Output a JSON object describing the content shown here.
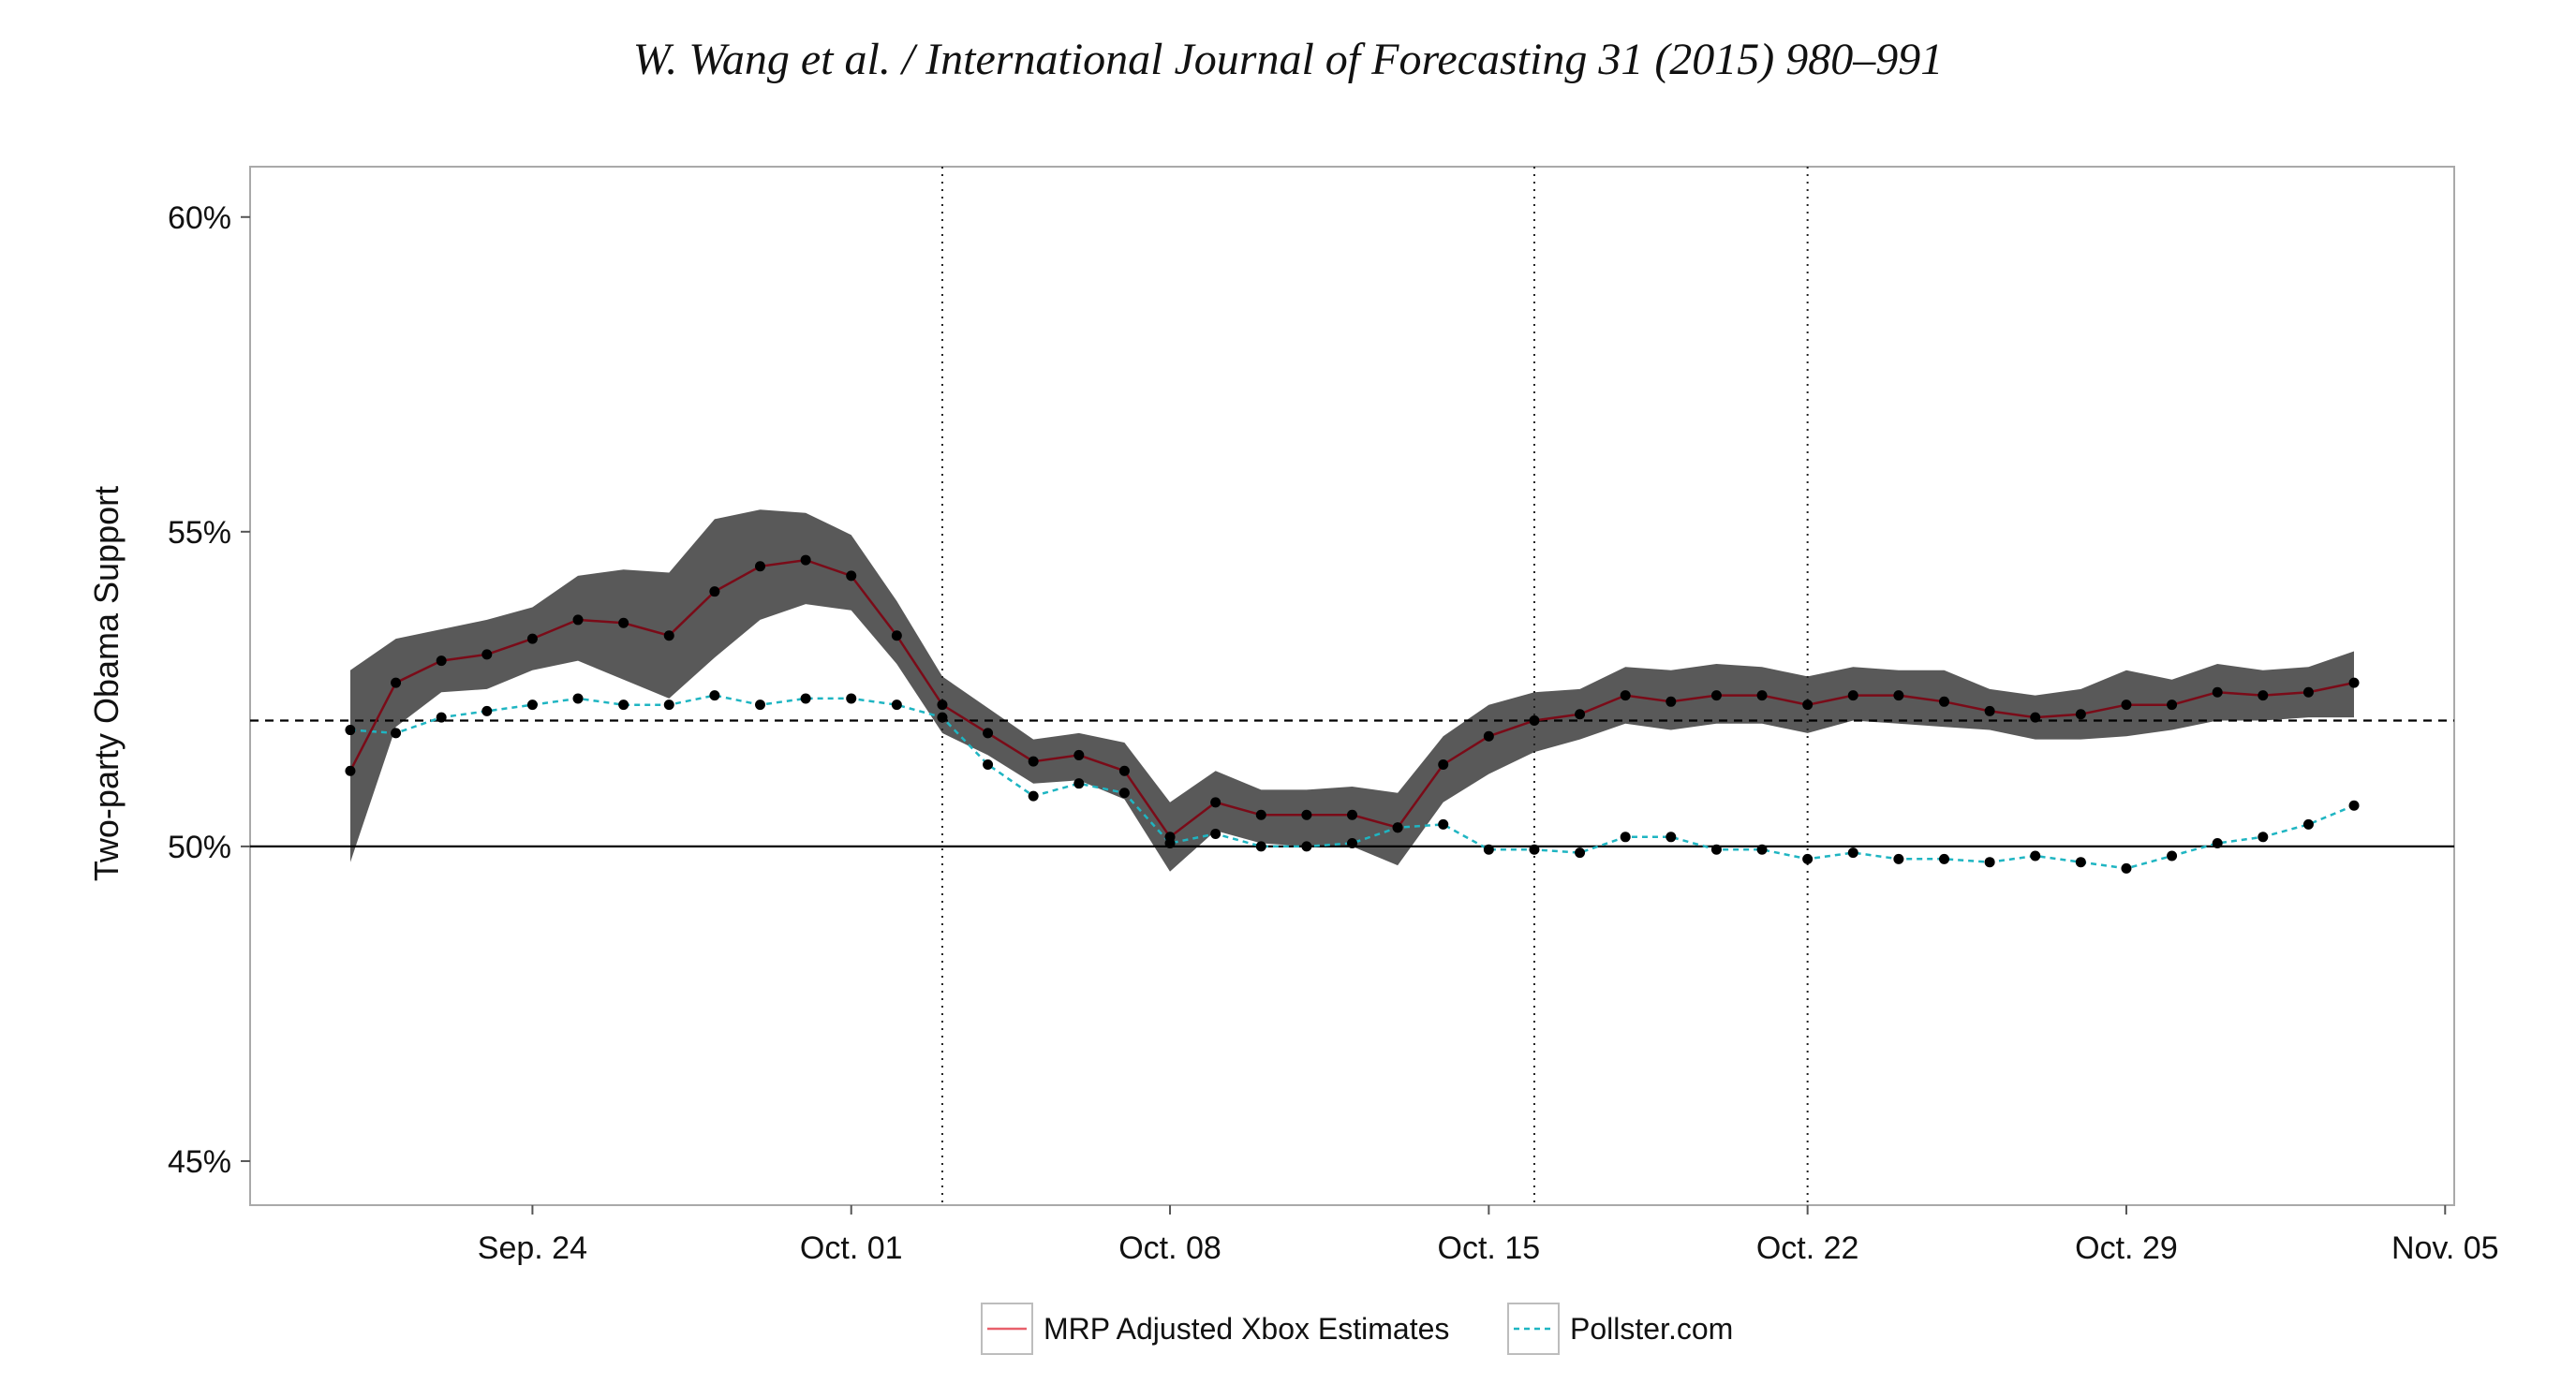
{
  "header": "W. Wang et al. / International Journal of Forecasting 31 (2015) 980–991",
  "chart_data": {
    "type": "line",
    "title": "",
    "xlabel": "",
    "ylabel": "Two-party Obama Support",
    "x_tick_labels": [
      "Sep. 24",
      "Oct. 01",
      "Oct. 08",
      "Oct. 15",
      "Oct. 22",
      "Oct. 29",
      "Nov. 05"
    ],
    "y_tick_labels": [
      "45%",
      "50%",
      "55%",
      "60%"
    ],
    "y_ticks": [
      45,
      50,
      55,
      60
    ],
    "ylim": [
      44.3,
      60.8
    ],
    "x_start_date": "Sep. 20",
    "x_tick_day_index": [
      4,
      11,
      18,
      25,
      32,
      39,
      46
    ],
    "xlim_day_index": [
      -2.2,
      46.2
    ],
    "vertical_reference_day_index": [
      13,
      26,
      32
    ],
    "horizontal_reference_lines": [
      {
        "value": 50,
        "style": "solid"
      },
      {
        "value": 52,
        "style": "dashed"
      }
    ],
    "legend": {
      "position": "bottom",
      "entries": [
        "MRP Adjusted Xbox Estimates",
        "Pollster.com"
      ]
    },
    "colors": {
      "mrp": "#e8606b",
      "mrp_on_band": "#7a0b18",
      "pollster": "#1fb5c2",
      "band": "#595959",
      "points": "#000000"
    },
    "grid": false,
    "series": [
      {
        "name": "MRP Adjusted Xbox Estimates",
        "day_index": [
          0,
          1,
          2,
          3,
          4,
          5,
          6,
          7,
          8,
          9,
          10,
          11,
          12,
          13,
          14,
          15,
          16,
          17,
          18,
          19,
          20,
          21,
          22,
          23,
          24,
          25,
          26,
          27,
          28,
          29,
          30,
          31,
          32,
          33,
          34,
          35,
          36,
          37,
          38,
          39,
          40,
          41,
          42,
          43,
          44
        ],
        "values": [
          51.2,
          52.6,
          52.95,
          53.05,
          53.3,
          53.6,
          53.55,
          53.35,
          54.05,
          54.45,
          54.55,
          54.3,
          53.35,
          52.25,
          51.8,
          51.35,
          51.45,
          51.2,
          50.15,
          50.7,
          50.5,
          50.5,
          50.5,
          50.3,
          51.3,
          51.75,
          52.0,
          52.1,
          52.4,
          52.3,
          52.4,
          52.4,
          52.25,
          52.4,
          52.4,
          52.3,
          52.15,
          52.05,
          52.1,
          52.25,
          52.25,
          52.45,
          52.4,
          52.45,
          52.6
        ],
        "ci_upper": [
          52.8,
          53.3,
          53.45,
          53.6,
          53.8,
          54.3,
          54.4,
          54.35,
          55.2,
          55.35,
          55.3,
          54.95,
          53.9,
          52.7,
          52.2,
          51.7,
          51.8,
          51.65,
          50.7,
          51.2,
          50.9,
          50.9,
          50.95,
          50.85,
          51.75,
          52.25,
          52.45,
          52.5,
          52.85,
          52.8,
          52.9,
          52.85,
          52.7,
          52.85,
          52.8,
          52.8,
          52.5,
          52.4,
          52.5,
          52.8,
          52.65,
          52.9,
          52.8,
          52.85,
          53.1
        ],
        "ci_lower": [
          49.75,
          51.9,
          52.45,
          52.5,
          52.8,
          52.95,
          52.65,
          52.35,
          53.0,
          53.6,
          53.85,
          53.75,
          52.9,
          51.8,
          51.45,
          51.0,
          51.05,
          50.75,
          49.6,
          50.25,
          50.05,
          50.0,
          50.0,
          49.7,
          50.7,
          51.15,
          51.5,
          51.7,
          51.95,
          51.85,
          51.95,
          51.95,
          51.8,
          52.0,
          51.95,
          51.9,
          51.85,
          51.7,
          51.7,
          51.75,
          51.85,
          52.0,
          52.0,
          52.05,
          52.05
        ]
      },
      {
        "name": "Pollster.com",
        "day_index": [
          0,
          1,
          2,
          3,
          4,
          5,
          6,
          7,
          8,
          9,
          10,
          11,
          12,
          13,
          14,
          15,
          16,
          17,
          18,
          19,
          20,
          21,
          22,
          23,
          24,
          25,
          26,
          27,
          28,
          29,
          30,
          31,
          32,
          33,
          34,
          35,
          36,
          37,
          38,
          39,
          40,
          41,
          42,
          43,
          44
        ],
        "values": [
          51.85,
          51.8,
          52.05,
          52.15,
          52.25,
          52.35,
          52.25,
          52.25,
          52.4,
          52.25,
          52.35,
          52.35,
          52.25,
          52.05,
          51.3,
          50.8,
          51.0,
          50.85,
          50.05,
          50.2,
          50.0,
          50.0,
          50.05,
          50.3,
          50.35,
          49.95,
          49.95,
          49.9,
          50.15,
          50.15,
          49.95,
          49.95,
          49.8,
          49.9,
          49.8,
          49.8,
          49.75,
          49.85,
          49.75,
          49.65,
          49.85,
          50.05,
          50.15,
          50.35,
          50.65
        ]
      }
    ]
  }
}
